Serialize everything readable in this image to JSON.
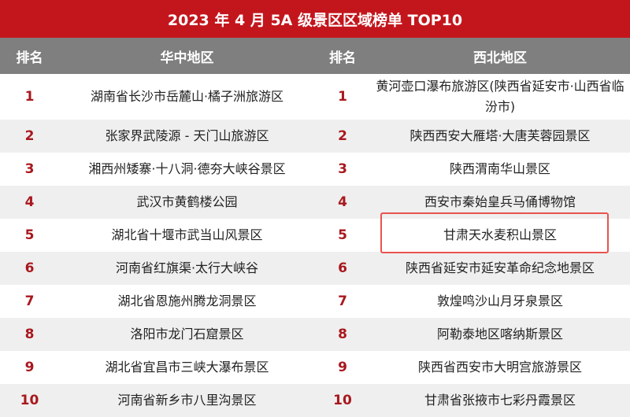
{
  "title": "2023 年 4 月 5A 级景区区域榜单 TOP10",
  "headers": [
    "排名",
    "华中地区",
    "排名",
    "西北地区"
  ],
  "highlight_color": "#e8534f",
  "highlighted_row": 5,
  "rows": [
    {
      "rank": "1",
      "central": "湖南省长沙市岳麓山·橘子洲旅游区",
      "northwest": "黄河壶口瀑布旅游区(陕西省延安市·山西省临汾市)"
    },
    {
      "rank": "2",
      "central": "张家界武陵源 - 天门山旅游区",
      "northwest": "陕西西安大雁塔·大唐芙蓉园景区"
    },
    {
      "rank": "3",
      "central": "湘西州矮寨·十八洞·德夯大峡谷景区",
      "northwest": "陕西渭南华山景区"
    },
    {
      "rank": "4",
      "central": "武汉市黄鹤楼公园",
      "northwest": "西安市秦始皇兵马俑博物馆"
    },
    {
      "rank": "5",
      "central": "湖北省十堰市武当山风景区",
      "northwest": "甘肃天水麦积山景区"
    },
    {
      "rank": "6",
      "central": "河南省红旗渠·太行大峡谷",
      "northwest": "陕西省延安市延安革命纪念地景区"
    },
    {
      "rank": "7",
      "central": "湖北省恩施州腾龙洞景区",
      "northwest": "敦煌鸣沙山月牙泉景区"
    },
    {
      "rank": "8",
      "central": "洛阳市龙门石窟景区",
      "northwest": "阿勒泰地区喀纳斯景区"
    },
    {
      "rank": "9",
      "central": "湖北省宜昌市三峡大瀑布景区",
      "northwest": "陕西省西安市大明宫旅游景区"
    },
    {
      "rank": "10",
      "central": "河南省新乡市八里沟景区",
      "northwest": "甘肃省张掖市七彩丹霞景区"
    }
  ]
}
